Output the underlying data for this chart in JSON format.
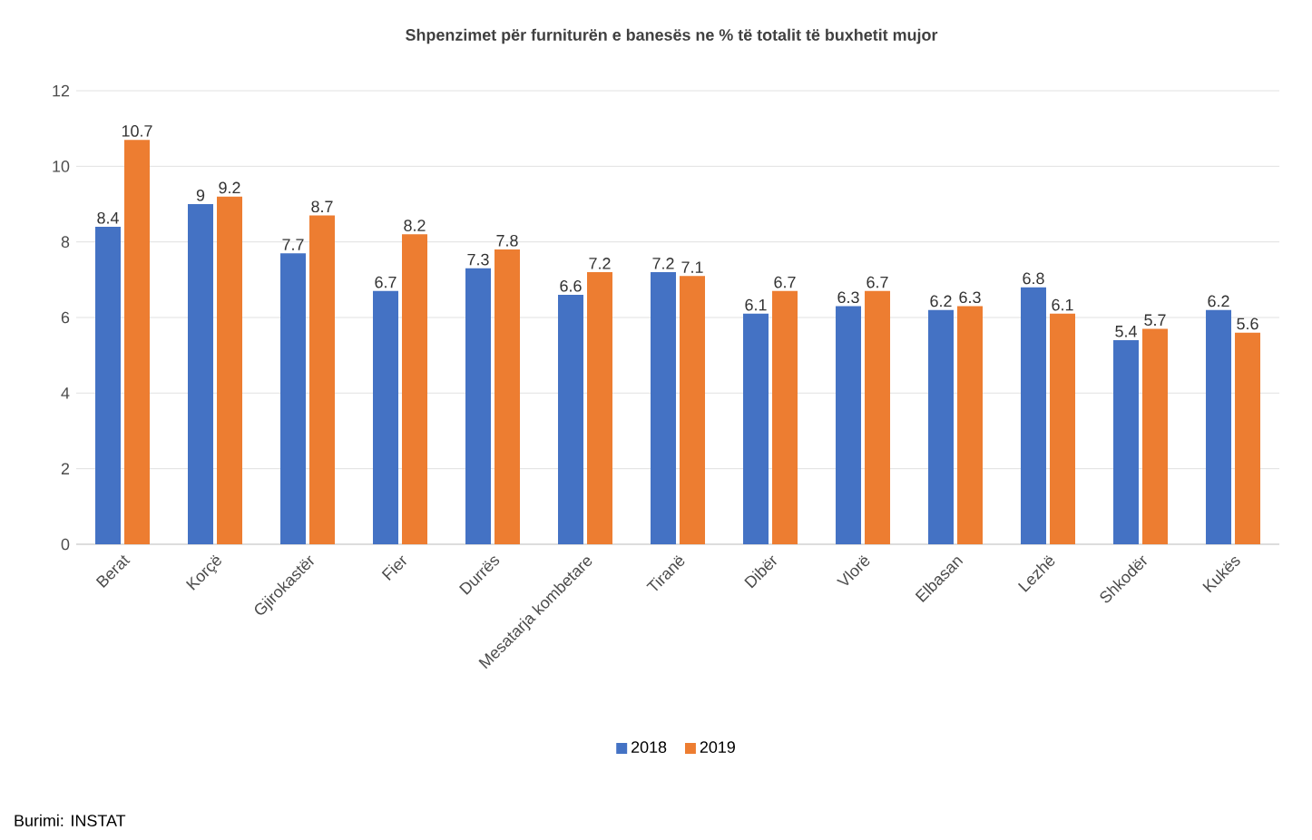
{
  "chart_data": {
    "type": "bar",
    "title": "Shpenzimet për furniturën e banesës ne % të totalit të buxhetit mujor",
    "categories": [
      "Berat",
      "Korçë",
      "Gjirokastër",
      "Fier",
      "Durrës",
      "Mesatarja kombetare",
      "Tiranë",
      "Dibër",
      "Vlorë",
      "Elbasan",
      "Lezhë",
      "Shkodër",
      "Kukës"
    ],
    "series": [
      {
        "name": "2018",
        "color": "#4472c4",
        "values": [
          8.4,
          9,
          7.7,
          6.7,
          7.3,
          6.6,
          7.2,
          6.1,
          6.3,
          6.2,
          6.8,
          5.4,
          6.2
        ]
      },
      {
        "name": "2019",
        "color": "#ed7d31",
        "values": [
          10.7,
          9.2,
          8.7,
          8.2,
          7.8,
          7.2,
          7.1,
          6.7,
          6.7,
          6.3,
          6.1,
          5.7,
          5.6
        ]
      }
    ],
    "ylim": [
      0,
      12
    ],
    "yticks": [
      0,
      2,
      4,
      6,
      8,
      10,
      12
    ],
    "grid": "y",
    "legend": "bottom",
    "data_labels": true,
    "annotations": [
      "Burimi: INSTAT"
    ]
  }
}
